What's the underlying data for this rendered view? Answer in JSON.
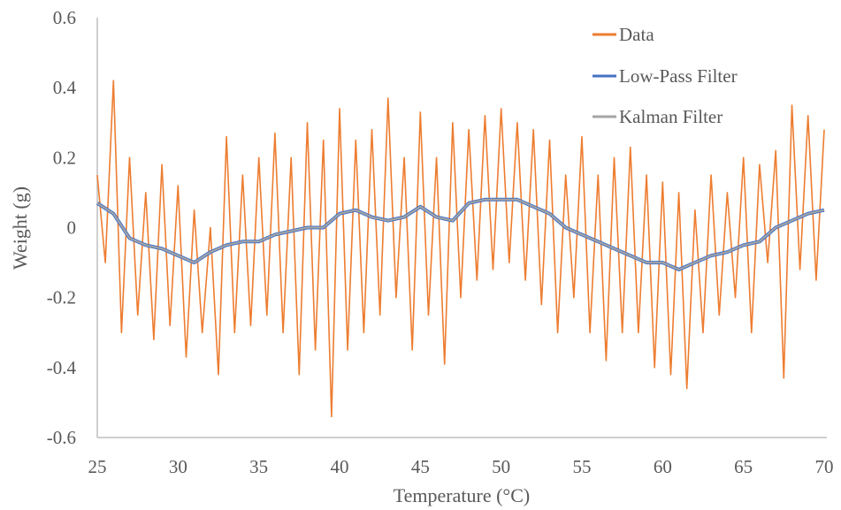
{
  "chart_data": {
    "type": "line",
    "title": "",
    "xlabel": "Temperature (°C)",
    "ylabel": "Weight  (g)",
    "xlim": [
      25,
      70
    ],
    "ylim": [
      -0.6,
      0.6
    ],
    "x_ticks": [
      "25",
      "30",
      "35",
      "40",
      "45",
      "50",
      "55",
      "60",
      "65",
      "70"
    ],
    "y_ticks": [
      "0.6",
      "0.4",
      "0.2",
      "0",
      "-0.2",
      "-0.4",
      "-0.6"
    ],
    "grid": false,
    "legend_position": "top-right",
    "series": [
      {
        "name": "Data",
        "color": "#ED7D31",
        "note_sampled": true,
        "x": [
          25,
          25.5,
          26,
          26.5,
          27,
          27.5,
          28,
          28.5,
          29,
          29.5,
          30,
          30.5,
          31,
          31.5,
          32,
          32.5,
          33,
          33.5,
          34,
          34.5,
          35,
          35.5,
          36,
          36.5,
          37,
          37.5,
          38,
          38.5,
          39,
          39.5,
          40,
          40.5,
          41,
          41.5,
          42,
          42.5,
          43,
          43.5,
          44,
          44.5,
          45,
          45.5,
          46,
          46.5,
          47,
          47.5,
          48,
          48.5,
          49,
          49.5,
          50,
          50.5,
          51,
          51.5,
          52,
          52.5,
          53,
          53.5,
          54,
          54.5,
          55,
          55.5,
          56,
          56.5,
          57,
          57.5,
          58,
          58.5,
          59,
          59.5,
          60,
          60.5,
          61,
          61.5,
          62,
          62.5,
          63,
          63.5,
          64,
          64.5,
          65,
          65.5,
          66,
          66.5,
          67,
          67.5,
          68,
          68.5,
          69,
          69.5,
          70
        ],
        "y": [
          0.15,
          -0.1,
          0.42,
          -0.3,
          0.2,
          -0.25,
          0.1,
          -0.32,
          0.18,
          -0.28,
          0.12,
          -0.37,
          0.05,
          -0.3,
          0.0,
          -0.42,
          0.26,
          -0.3,
          0.15,
          -0.28,
          0.2,
          -0.25,
          0.27,
          -0.3,
          0.2,
          -0.42,
          0.3,
          -0.35,
          0.25,
          -0.54,
          0.34,
          -0.35,
          0.25,
          -0.3,
          0.28,
          -0.25,
          0.37,
          -0.2,
          0.2,
          -0.35,
          0.33,
          -0.25,
          0.2,
          -0.39,
          0.3,
          -0.2,
          0.28,
          -0.15,
          0.32,
          -0.12,
          0.34,
          -0.1,
          0.3,
          -0.15,
          0.28,
          -0.22,
          0.25,
          -0.3,
          0.15,
          -0.2,
          0.26,
          -0.3,
          0.15,
          -0.38,
          0.2,
          -0.3,
          0.23,
          -0.3,
          0.15,
          -0.4,
          0.13,
          -0.42,
          0.1,
          -0.46,
          0.05,
          -0.3,
          0.15,
          -0.25,
          0.1,
          -0.2,
          0.2,
          -0.3,
          0.18,
          -0.1,
          0.22,
          -0.43,
          0.35,
          -0.12,
          0.32,
          -0.15,
          0.28
        ]
      },
      {
        "name": "Low-Pass Filter",
        "color": "#4472C4",
        "x": [
          25,
          26,
          27,
          28,
          29,
          30,
          31,
          32,
          33,
          34,
          35,
          36,
          37,
          38,
          39,
          40,
          41,
          42,
          43,
          44,
          45,
          46,
          47,
          48,
          49,
          50,
          51,
          52,
          53,
          54,
          55,
          56,
          57,
          58,
          59,
          60,
          61,
          62,
          63,
          64,
          65,
          66,
          67,
          68,
          69,
          70
        ],
        "y": [
          0.07,
          0.04,
          -0.03,
          -0.05,
          -0.06,
          -0.08,
          -0.1,
          -0.07,
          -0.05,
          -0.04,
          -0.04,
          -0.02,
          -0.01,
          0.0,
          0.0,
          0.04,
          0.05,
          0.03,
          0.02,
          0.03,
          0.06,
          0.03,
          0.02,
          0.07,
          0.08,
          0.08,
          0.08,
          0.06,
          0.04,
          0.0,
          -0.02,
          -0.04,
          -0.06,
          -0.08,
          -0.1,
          -0.1,
          -0.12,
          -0.1,
          -0.08,
          -0.07,
          -0.05,
          -0.04,
          0.0,
          0.02,
          0.04,
          0.05
        ]
      },
      {
        "name": "Kalman Filter",
        "color": "#A5A5A5",
        "x": [
          25,
          26,
          27,
          28,
          29,
          30,
          31,
          32,
          33,
          34,
          35,
          36,
          37,
          38,
          39,
          40,
          41,
          42,
          43,
          44,
          45,
          46,
          47,
          48,
          49,
          50,
          51,
          52,
          53,
          54,
          55,
          56,
          57,
          58,
          59,
          60,
          61,
          62,
          63,
          64,
          65,
          66,
          67,
          68,
          69,
          70
        ],
        "y": [
          0.07,
          0.04,
          -0.03,
          -0.05,
          -0.06,
          -0.08,
          -0.1,
          -0.07,
          -0.05,
          -0.04,
          -0.04,
          -0.02,
          -0.01,
          0.0,
          0.0,
          0.04,
          0.05,
          0.03,
          0.02,
          0.03,
          0.06,
          0.03,
          0.02,
          0.07,
          0.08,
          0.08,
          0.08,
          0.06,
          0.04,
          0.0,
          -0.02,
          -0.04,
          -0.06,
          -0.08,
          -0.1,
          -0.1,
          -0.12,
          -0.1,
          -0.08,
          -0.07,
          -0.05,
          -0.04,
          0.0,
          0.02,
          0.04,
          0.05
        ]
      }
    ]
  }
}
